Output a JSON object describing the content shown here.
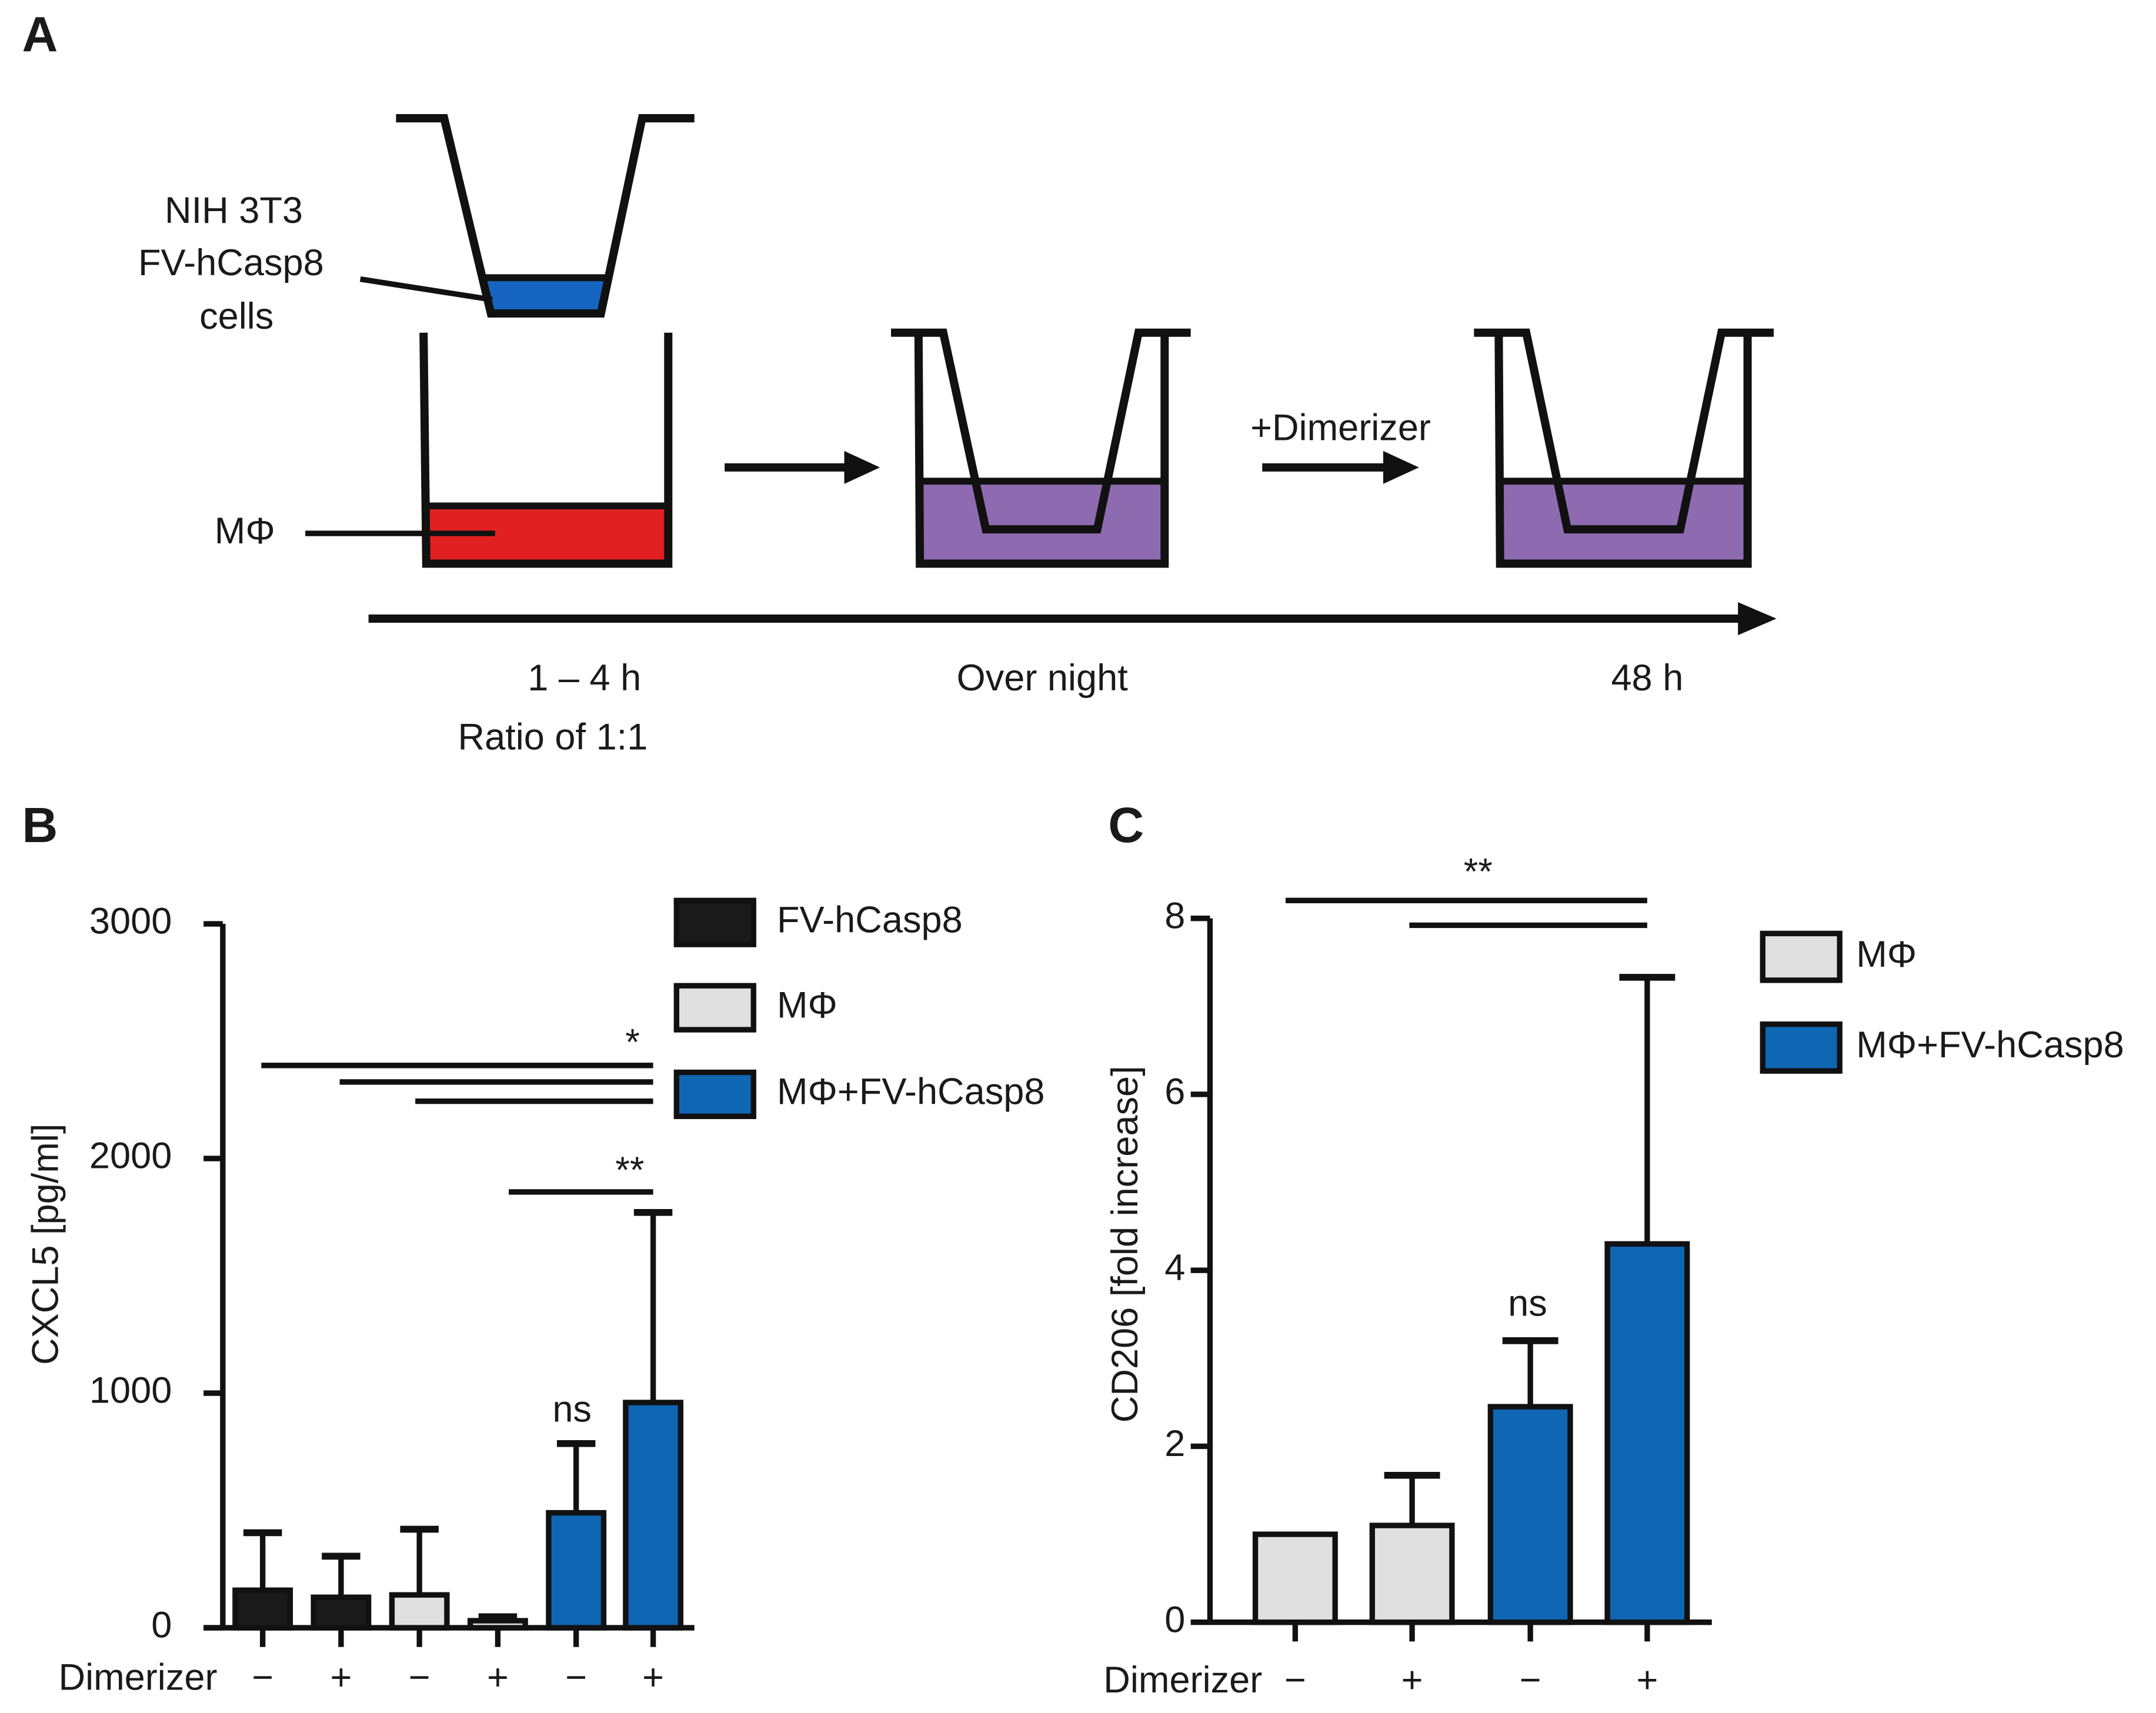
{
  "panels": {
    "a": "A",
    "b": "B",
    "c": "C"
  },
  "diagram": {
    "insert_label": [
      "NIH 3T3",
      "FV-hCasp8",
      "cells"
    ],
    "macrophage_label": "MΦ",
    "treatment": "+Dimerizer",
    "timeline": [
      "1 – 4 h",
      "Over night",
      "48 h"
    ],
    "ratio": "Ratio of 1:1"
  },
  "chart_data": [
    {
      "type": "bar",
      "y_label": "CXCL5 [pg/ml]",
      "x_label": "Dimerizer",
      "categories": [
        "−",
        "+",
        "−",
        "+",
        "−",
        "+"
      ],
      "series": [
        {
          "name": "FV-hCasp8",
          "color": "#1a1a1a",
          "values": [
            160,
            130,
            null,
            null,
            null,
            null
          ],
          "errors": [
            245,
            175,
            null,
            null,
            null,
            null
          ]
        },
        {
          "name": "MΦ",
          "color": "#e0e0e0",
          "values": [
            null,
            null,
            140,
            30,
            null,
            null
          ],
          "errors": [
            null,
            null,
            280,
            17,
            null,
            null
          ]
        },
        {
          "name": "MΦ+FV-hCasp8",
          "color": "#0f66b3",
          "values": [
            null,
            null,
            null,
            null,
            490,
            960
          ],
          "errors": [
            null,
            null,
            null,
            null,
            295,
            810
          ]
        }
      ],
      "ylim": [
        0,
        3000
      ],
      "yticks": [
        0,
        1000,
        2000,
        3000
      ],
      "annotations": [
        "*",
        "**",
        "ns"
      ]
    },
    {
      "type": "bar",
      "y_label": "CD206 [fold increase]",
      "x_label": "Dimerizer",
      "categories": [
        "−",
        "+",
        "−",
        "+"
      ],
      "series": [
        {
          "name": "MΦ",
          "color": "#e0e0e0",
          "values": [
            1.0,
            1.1,
            null,
            null
          ],
          "errors": [
            null,
            0.57,
            null,
            null
          ]
        },
        {
          "name": "MΦ+FV-hCasp8",
          "color": "#0f66b3",
          "values": [
            null,
            null,
            2.45,
            4.3
          ],
          "errors": [
            null,
            null,
            0.75,
            3.03
          ]
        }
      ],
      "ylim": [
        0,
        8
      ],
      "yticks": [
        0,
        2,
        4,
        6,
        8
      ],
      "annotations": [
        "**",
        "ns"
      ]
    }
  ]
}
